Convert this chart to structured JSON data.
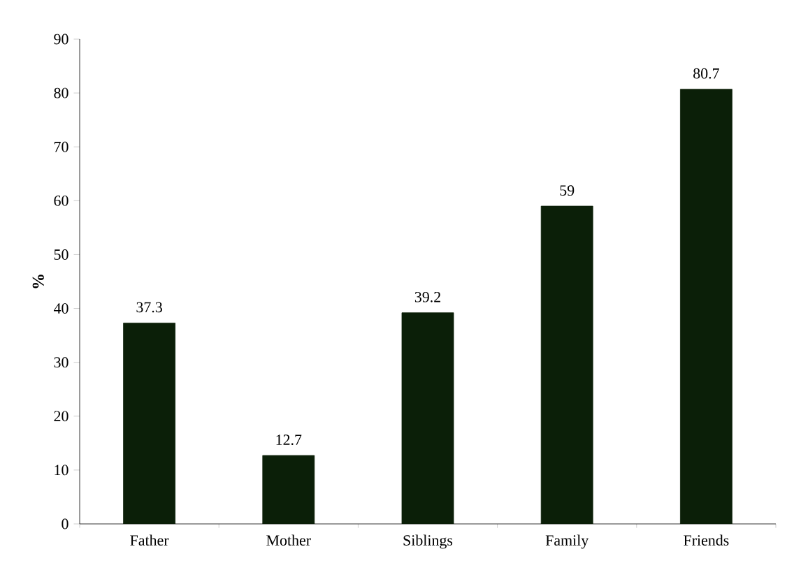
{
  "chart_data": {
    "type": "bar",
    "ylabel": "%",
    "categories": [
      "Father",
      "Mother",
      "Siblings",
      "Family",
      "Friends"
    ],
    "values": [
      37.3,
      12.7,
      39.2,
      59,
      80.7
    ],
    "color": "#0b1f08",
    "ylim": [
      0,
      90
    ],
    "yticks": [
      0,
      10,
      20,
      30,
      40,
      50,
      60,
      70,
      80,
      90
    ],
    "data_labels": true,
    "grid": false
  }
}
